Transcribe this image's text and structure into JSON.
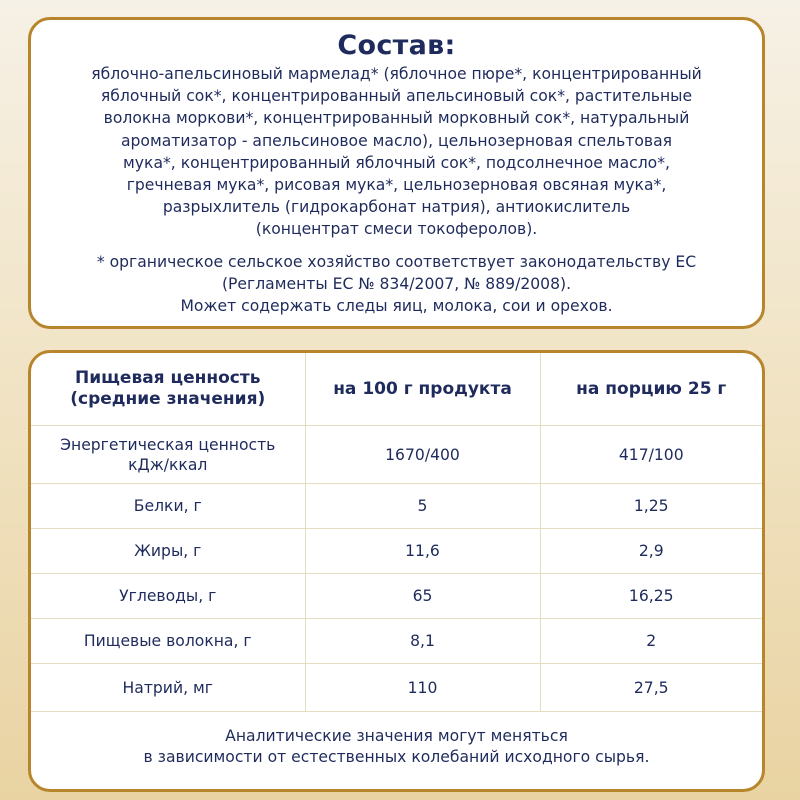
{
  "composition": {
    "title": "Состав:",
    "ingredients_lines": [
      "яблочно-апельсиновый мармелад* (яблочное пюре*, концентрированный",
      "яблочный сок*, концентрированный апельсиновый сок*, растительные",
      "волокна моркови*, концентрированный морковный сок*, натуральный",
      "ароматизатор - апельсиновое масло), цельнозерновая спельтовая",
      "мука*, концентрированный яблочный сок*, подсолнечное масло*,",
      "гречневая мука*, рисовая мука*, цельнозерновая овсяная мука*,",
      "разрыхлитель (гидрокарбонат натрия), антиокислитель",
      "(концентрат смеси токоферолов)."
    ],
    "note_lines": [
      "* органическое сельское хозяйство соответствует законодательству ЕС",
      "(Регламенты ЕС № 834/2007, № 889/2008).",
      "Может содержать следы яиц, молока, сои и орехов."
    ]
  },
  "nutrition": {
    "headers": [
      "Пищевая ценность",
      "(средние значения)",
      "на 100 г продукта",
      "на порцию 25 г"
    ],
    "energy": {
      "label_1": "Энергетическая ценность",
      "label_2": "кДж/ккал",
      "per100": "1670/400",
      "portion": "417/100"
    },
    "rows": [
      {
        "label": "Белки, г",
        "per100": "5",
        "portion": "1,25"
      },
      {
        "label": "Жиры, г",
        "per100": "11,6",
        "portion": "2,9"
      },
      {
        "label": "Углеводы, г",
        "per100": "65",
        "portion": "16,25"
      },
      {
        "label": "Пищевые волокна, г",
        "per100": "8,1",
        "portion": "2"
      },
      {
        "label": "Натрий, мг",
        "per100": "110",
        "portion": "27,5"
      }
    ],
    "footer_lines": [
      "Аналитические значения могут меняться",
      "в зависимости от естественных колебаний исходного сырья."
    ]
  }
}
